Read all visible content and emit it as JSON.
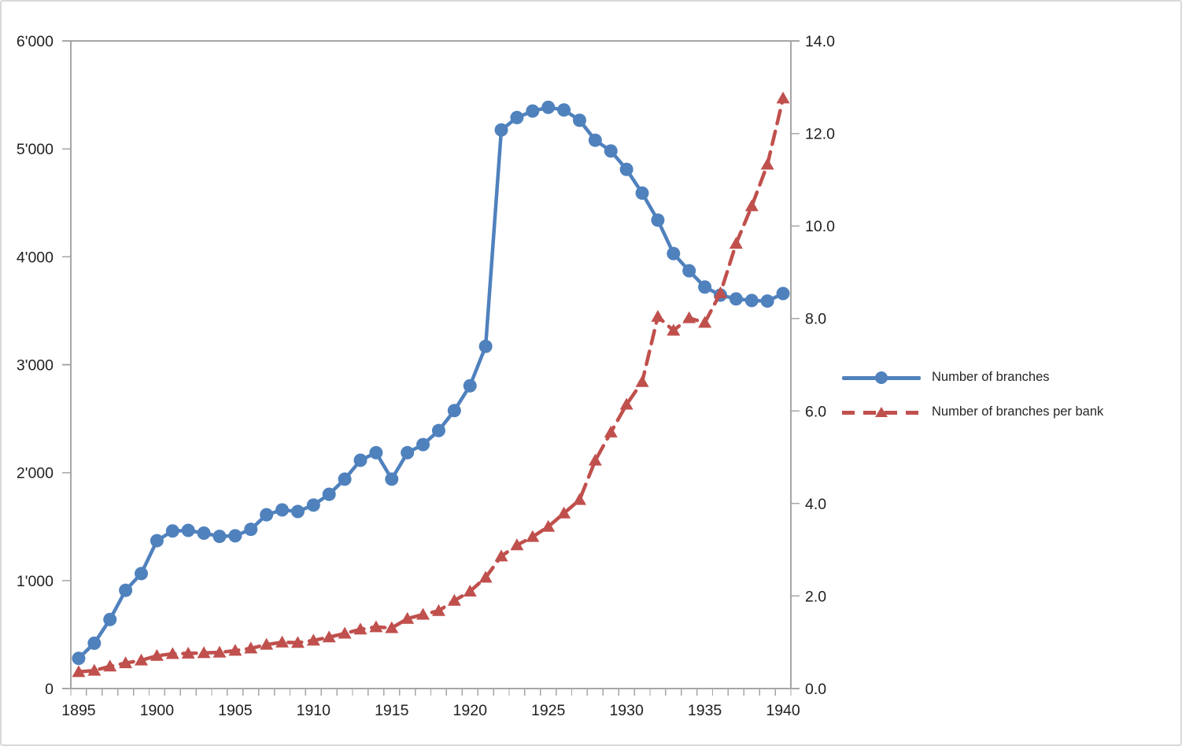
{
  "chart_data": {
    "type": "line",
    "title": "",
    "xlabel": "",
    "ylabel_left": "",
    "ylabel_right": "",
    "grid": false,
    "x": [
      1895,
      1896,
      1897,
      1898,
      1899,
      1900,
      1901,
      1902,
      1903,
      1904,
      1905,
      1906,
      1907,
      1908,
      1909,
      1910,
      1911,
      1912,
      1913,
      1914,
      1915,
      1916,
      1917,
      1918,
      1919,
      1920,
      1921,
      1922,
      1923,
      1924,
      1925,
      1926,
      1927,
      1928,
      1929,
      1930,
      1931,
      1932,
      1933,
      1934,
      1935,
      1936,
      1937,
      1938,
      1939,
      1940
    ],
    "x_label_every": 5,
    "series": [
      {
        "name": "Number of branches",
        "axis": "left",
        "color": "#4F81BD",
        "marker": "circle",
        "style": "solid",
        "values": [
          280,
          420,
          640,
          910,
          1065,
          1370,
          1460,
          1465,
          1440,
          1410,
          1415,
          1475,
          1610,
          1655,
          1640,
          1700,
          1800,
          1940,
          2115,
          2185,
          1940,
          2185,
          2260,
          2390,
          2575,
          2805,
          3170,
          5175,
          5290,
          5350,
          5385,
          5360,
          5265,
          5080,
          4980,
          4810,
          4590,
          4340,
          4030,
          3870,
          3720,
          3645,
          3610,
          3595,
          3590,
          3660
        ]
      },
      {
        "name": "Number of branches per bank",
        "axis": "right",
        "color": "#C0504D",
        "marker": "triangle",
        "style": "dashed",
        "values": [
          0.36,
          0.39,
          0.48,
          0.55,
          0.61,
          0.71,
          0.75,
          0.76,
          0.77,
          0.78,
          0.82,
          0.87,
          0.95,
          1.0,
          0.99,
          1.04,
          1.11,
          1.19,
          1.28,
          1.33,
          1.31,
          1.51,
          1.6,
          1.68,
          1.9,
          2.1,
          2.4,
          2.86,
          3.1,
          3.28,
          3.5,
          3.79,
          4.08,
          4.93,
          5.54,
          6.14,
          6.63,
          8.04,
          7.74,
          8.01,
          7.91,
          8.55,
          9.62,
          10.43,
          11.33,
          12.76
        ]
      }
    ],
    "left_axis": {
      "min": 0,
      "max": 6000,
      "tick_labels": [
        "0",
        "1'000",
        "2'000",
        "3'000",
        "4'000",
        "5'000",
        "6'000"
      ]
    },
    "right_axis": {
      "min": 0,
      "max": 14,
      "tick_labels": [
        "0.0",
        "2.0",
        "4.0",
        "6.0",
        "8.0",
        "10.0",
        "12.0",
        "14.0"
      ]
    },
    "legend": {
      "position": "right-middle"
    },
    "axis_color": "#a6a6a6",
    "text_color": "#212121"
  }
}
